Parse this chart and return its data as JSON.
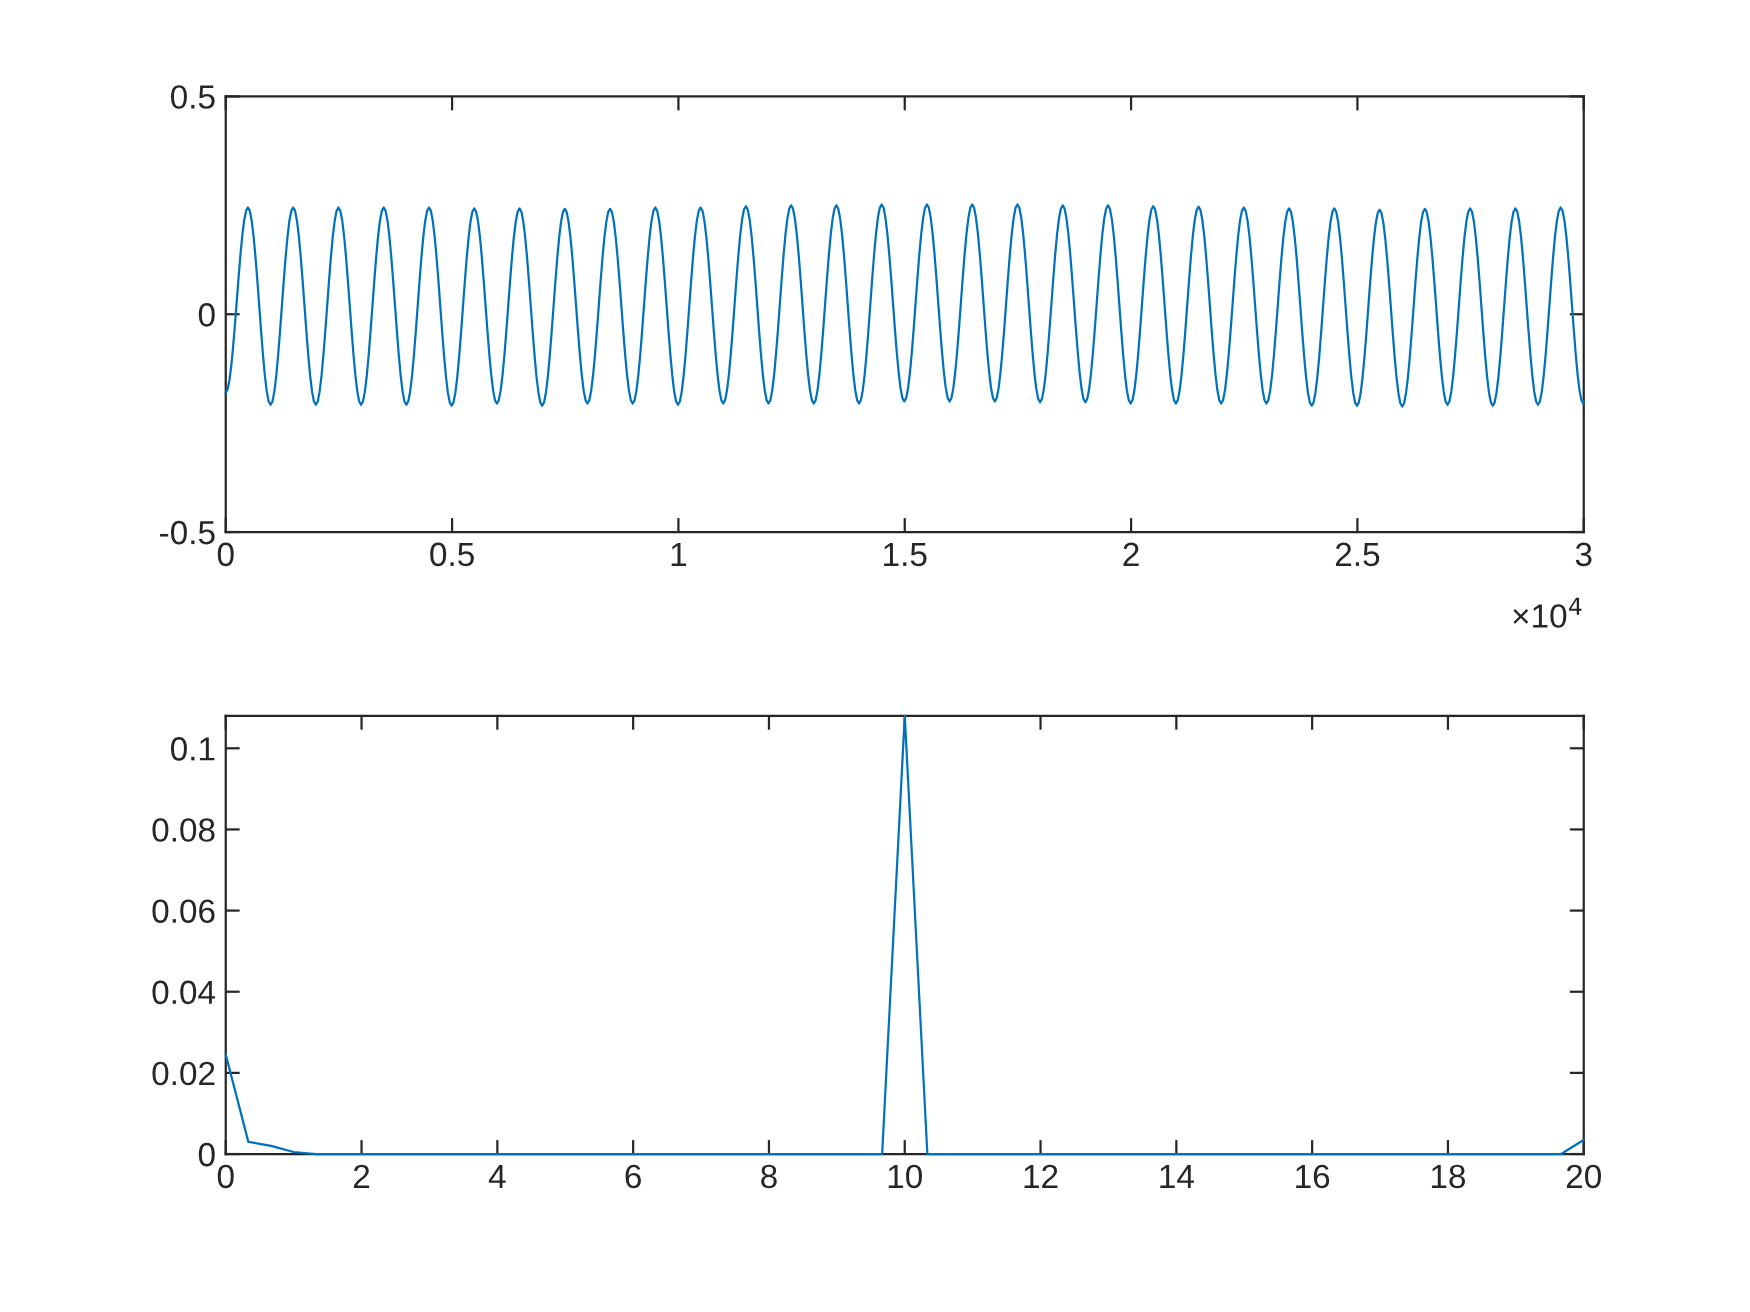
{
  "chart_data": [
    {
      "type": "line",
      "x": [
        0,
        0.049,
        0.099,
        0.149,
        0.199,
        0.249,
        0.299,
        0.349,
        0.399,
        0.449,
        0.499,
        0.549,
        0.599,
        0.649,
        0.699,
        0.749,
        0.799,
        0.849,
        0.899,
        0.949,
        0.999,
        1.049,
        1.099,
        1.149,
        1.199,
        1.249,
        1.299,
        1.349,
        1.399,
        1.449,
        1.499,
        1.549,
        1.599,
        1.649,
        1.699,
        1.749,
        1.799,
        1.849,
        1.899,
        1.949,
        1.999,
        2.049,
        2.099,
        2.149,
        2.199,
        2.249,
        2.299,
        2.349,
        2.399,
        2.449,
        2.499,
        2.549,
        2.599,
        2.649,
        2.699,
        2.749,
        2.799,
        2.849,
        2.899,
        2.949,
        2.999,
        3
      ],
      "series": [
        {
          "color": "#0072bd",
          "values": [
            -0.18,
            0.245,
            -0.208,
            0.245,
            -0.208,
            0.245,
            -0.208,
            0.245,
            -0.208,
            0.245,
            -0.21,
            0.243,
            -0.205,
            0.243,
            -0.21,
            0.242,
            -0.205,
            0.242,
            -0.205,
            0.245,
            -0.208,
            0.245,
            -0.205,
            0.248,
            -0.205,
            0.25,
            -0.205,
            0.25,
            -0.205,
            0.252,
            -0.2,
            0.252,
            -0.2,
            0.252,
            -0.2,
            0.252,
            -0.202,
            0.25,
            -0.202,
            0.25,
            -0.205,
            0.248,
            -0.205,
            0.247,
            -0.205,
            0.245,
            -0.205,
            0.243,
            -0.21,
            0.243,
            -0.21,
            0.24,
            -0.212,
            0.242,
            -0.208,
            0.243,
            -0.21,
            0.243,
            -0.208,
            0.245,
            -0.205,
            -0.2
          ]
        }
      ],
      "xlim": [
        0,
        3
      ],
      "xticks": [
        0,
        0.5,
        1,
        1.5,
        2,
        2.5,
        3
      ],
      "ylim": [
        -0.5,
        0.5
      ],
      "yticks": [
        {
          "value": -0.5,
          "label": "-0.5"
        },
        0,
        0.5
      ],
      "annotations": [
        "×10$^{4}$"
      ],
      "grid": false,
      "legend": false
    },
    {
      "type": "line",
      "x": [
        0,
        0.333,
        0.667,
        1,
        1.333,
        1.667,
        2,
        2.333,
        2.667,
        3,
        3.333,
        3.667,
        4,
        4.333,
        4.667,
        5,
        5.333,
        5.667,
        6,
        6.333,
        6.667,
        7,
        7.333,
        7.667,
        8,
        8.333,
        8.667,
        9,
        9.333,
        9.667,
        10,
        10.333,
        10.667,
        11,
        11.333,
        11.667,
        12,
        12.333,
        12.667,
        13,
        13.333,
        13.667,
        14,
        14.333,
        14.667,
        15,
        15.333,
        15.667,
        16,
        16.333,
        16.667,
        17,
        17.333,
        17.667,
        18,
        18.333,
        18.667,
        19,
        19.333,
        19.667,
        20
      ],
      "series": [
        {
          "color": "#0072bd",
          "values": [
            0.0245,
            0.003,
            0.002,
            0.0005,
            0,
            0,
            0,
            0,
            0,
            0,
            0,
            0,
            0,
            0,
            0,
            0,
            0,
            0,
            0,
            0,
            0,
            0,
            0,
            0,
            0,
            0,
            0,
            0,
            0,
            0,
            0.108,
            0,
            0,
            0,
            0,
            0,
            0,
            0,
            0,
            0,
            0,
            0,
            0,
            0,
            0,
            0,
            0,
            0,
            0,
            0,
            0,
            0,
            0,
            0,
            0,
            0,
            0,
            0,
            0,
            0,
            0.0035
          ]
        }
      ],
      "xlim": [
        0,
        20
      ],
      "xticks": [
        0,
        2,
        4,
        6,
        8,
        10,
        12,
        14,
        16,
        18,
        20
      ],
      "ylim": [
        0,
        0.108
      ],
      "yticks": [
        0,
        0.02,
        0.04,
        0.06,
        0.08,
        0.1
      ],
      "grid": false,
      "legend": false
    }
  ]
}
